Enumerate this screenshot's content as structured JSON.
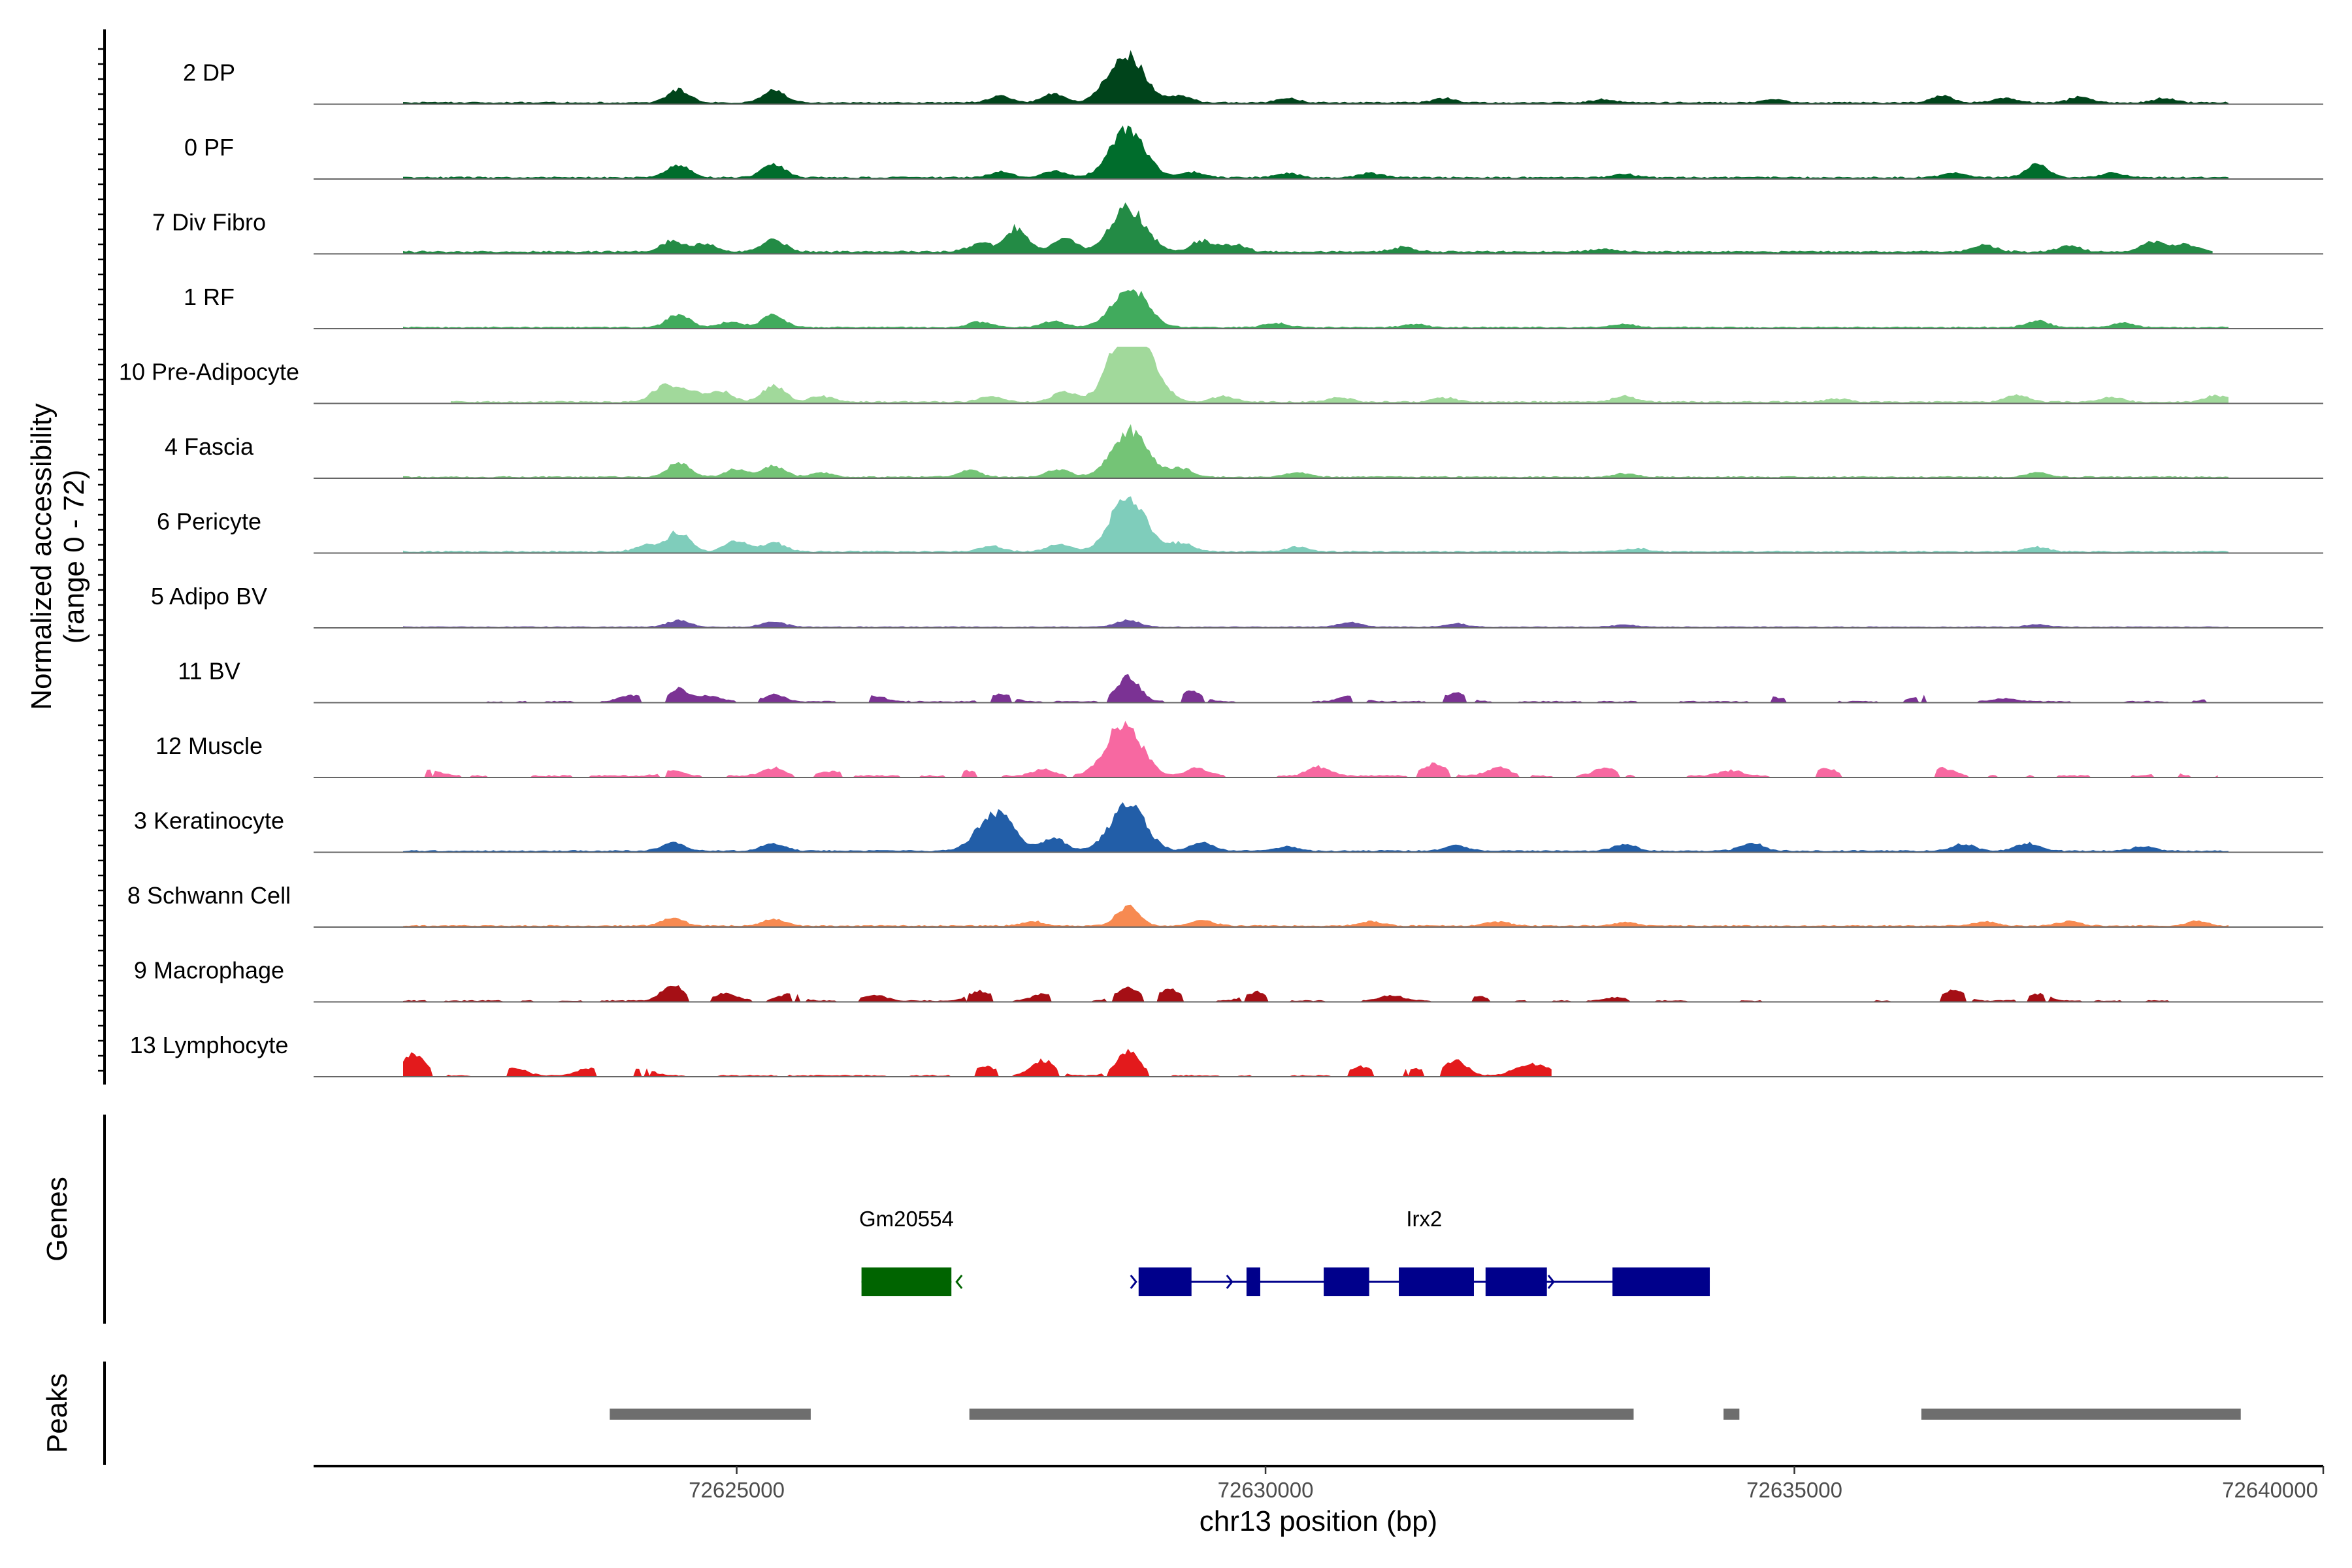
{
  "chart_data": {
    "type": "area",
    "ylabel_line1": "Normalized accessibility",
    "ylabel_line2": "(range 0 - 72)",
    "ylim": [
      0,
      72
    ],
    "xlabel": "chr13 position (bp)",
    "xlim": [
      72621000,
      72640000
    ],
    "x_ticks": [
      {
        "value": 72625000,
        "label": "72625000"
      },
      {
        "value": 72630000,
        "label": "72630000"
      },
      {
        "value": 72635000,
        "label": "72635000"
      },
      {
        "value": 72640000,
        "label": "72640000"
      }
    ],
    "track_range": [
      72621850,
      72640000
    ],
    "tracks": [
      {
        "name": "2 DP",
        "color": "#00441b",
        "peaks": [
          [
            72624450,
            12
          ],
          [
            72625350,
            11
          ],
          [
            72627500,
            6
          ],
          [
            72628000,
            8
          ],
          [
            72628680,
            46
          ],
          [
            72629200,
            6
          ],
          [
            72630200,
            4
          ],
          [
            72631700,
            4
          ],
          [
            72633200,
            3
          ],
          [
            72634800,
            3
          ],
          [
            72637000,
            4
          ],
          [
            72636400,
            6
          ],
          [
            72637700,
            5
          ],
          [
            72638500,
            4
          ]
        ],
        "noise": 1.5,
        "start": 72621850,
        "end": 72639100
      },
      {
        "name": "0 PF",
        "color": "#006d2c",
        "peaks": [
          [
            72624450,
            12
          ],
          [
            72625350,
            12
          ],
          [
            72627500,
            5
          ],
          [
            72628000,
            6
          ],
          [
            72628700,
            44
          ],
          [
            72629300,
            5
          ],
          [
            72630200,
            4
          ],
          [
            72631000,
            4
          ],
          [
            72633400,
            3
          ],
          [
            72636500,
            4
          ],
          [
            72637300,
            12
          ],
          [
            72638000,
            4
          ]
        ],
        "noise": 1.5,
        "start": 72621850,
        "end": 72639100
      },
      {
        "name": "7 Div Fibro",
        "color": "#238b45",
        "peaks": [
          [
            72624400,
            10
          ],
          [
            72624700,
            7
          ],
          [
            72625350,
            11
          ],
          [
            72627650,
            22
          ],
          [
            72627300,
            8
          ],
          [
            72628100,
            12
          ],
          [
            72628700,
            40
          ],
          [
            72629400,
            10
          ],
          [
            72629700,
            7
          ],
          [
            72631300,
            4
          ],
          [
            72633200,
            3
          ],
          [
            72636800,
            6
          ],
          [
            72637600,
            6
          ],
          [
            72638400,
            9
          ],
          [
            72638700,
            7
          ]
        ],
        "noise": 2.0,
        "start": 72621850,
        "end": 72638950
      },
      {
        "name": "1 RF",
        "color": "#41ab5d",
        "peaks": [
          [
            72624450,
            12
          ],
          [
            72625350,
            11
          ],
          [
            72624950,
            5
          ],
          [
            72627300,
            5
          ],
          [
            72628000,
            6
          ],
          [
            72628720,
            36
          ],
          [
            72630100,
            4
          ],
          [
            72631400,
            3
          ],
          [
            72633400,
            3
          ],
          [
            72637300,
            6
          ],
          [
            72638100,
            4
          ]
        ],
        "noise": 1.2,
        "start": 72621850,
        "end": 72639100
      },
      {
        "name": "10 Pre-Adipocyte",
        "color": "#a1d99b",
        "peaks": [
          [
            72624300,
            14
          ],
          [
            72624550,
            11
          ],
          [
            72624850,
            10
          ],
          [
            72625350,
            15
          ],
          [
            72625800,
            5
          ],
          [
            72627400,
            5
          ],
          [
            72628100,
            10
          ],
          [
            72628680,
            60
          ],
          [
            72628850,
            28
          ],
          [
            72629600,
            5
          ],
          [
            72630700,
            4
          ],
          [
            72631700,
            4
          ],
          [
            72633400,
            5
          ],
          [
            72635400,
            3
          ],
          [
            72637100,
            6
          ],
          [
            72638000,
            4
          ],
          [
            72639000,
            6
          ]
        ],
        "noise": 1.5,
        "start": 72622300,
        "end": 72639100
      },
      {
        "name": "4 Fascia",
        "color": "#74c476",
        "peaks": [
          [
            72624450,
            13
          ],
          [
            72625000,
            7
          ],
          [
            72625350,
            10
          ],
          [
            72625800,
            4
          ],
          [
            72627200,
            6
          ],
          [
            72628050,
            7
          ],
          [
            72628720,
            42
          ],
          [
            72629200,
            8
          ],
          [
            72630300,
            4
          ],
          [
            72633400,
            3
          ],
          [
            72637300,
            4
          ]
        ],
        "noise": 1.2,
        "start": 72621850,
        "end": 72639100
      },
      {
        "name": "6 Pericyte",
        "color": "#7fcdbb",
        "peaks": [
          [
            72624450,
            18
          ],
          [
            72624150,
            6
          ],
          [
            72625000,
            10
          ],
          [
            72625350,
            8
          ],
          [
            72627400,
            5
          ],
          [
            72628050,
            7
          ],
          [
            72628700,
            50
          ],
          [
            72629200,
            8
          ],
          [
            72630300,
            4
          ],
          [
            72633500,
            3
          ],
          [
            72637300,
            4
          ]
        ],
        "noise": 1.4,
        "start": 72621850,
        "end": 72639100
      },
      {
        "name": "5 Adipo BV",
        "color": "#6a51a3",
        "peaks": [
          [
            72624450,
            6
          ],
          [
            72625350,
            5
          ],
          [
            72628700,
            6
          ],
          [
            72630800,
            4
          ],
          [
            72631800,
            3
          ],
          [
            72633400,
            2
          ],
          [
            72637300,
            2
          ]
        ],
        "noise": 0.8,
        "start": 72621850,
        "end": 72639100
      },
      {
        "name": "11 BV",
        "color": "#7b3294",
        "peaks": [
          [
            72624450,
            11
          ],
          [
            72624000,
            6
          ],
          [
            72624750,
            5
          ],
          [
            72625350,
            6
          ],
          [
            72626300,
            5
          ],
          [
            72627500,
            7
          ],
          [
            72628700,
            22
          ],
          [
            72629300,
            9
          ],
          [
            72630800,
            5
          ],
          [
            72631800,
            8
          ],
          [
            72634800,
            4
          ],
          [
            72636200,
            5
          ],
          [
            72637000,
            3
          ],
          [
            72639000,
            4
          ]
        ],
        "noise": 1.0,
        "start": 72622300,
        "end": 72639100,
        "gaps": 0.45
      },
      {
        "name": "12 Muscle",
        "color": "#f768a1",
        "peaks": [
          [
            72622100,
            5
          ],
          [
            72624400,
            5
          ],
          [
            72625350,
            7
          ],
          [
            72625900,
            4
          ],
          [
            72627200,
            5
          ],
          [
            72627900,
            6
          ],
          [
            72628660,
            48
          ],
          [
            72629350,
            7
          ],
          [
            72630500,
            8
          ],
          [
            72631600,
            11
          ],
          [
            72632200,
            8
          ],
          [
            72633200,
            7
          ],
          [
            72634400,
            5
          ],
          [
            72635300,
            6
          ],
          [
            72636400,
            7
          ],
          [
            72638500,
            4
          ]
        ],
        "noise": 1.5,
        "start": 72621850,
        "end": 72639000,
        "gaps": 0.4
      },
      {
        "name": "3 Keratinocyte",
        "color": "#225ea8",
        "peaks": [
          [
            72624400,
            8
          ],
          [
            72625350,
            7
          ],
          [
            72627450,
            36
          ],
          [
            72628000,
            12
          ],
          [
            72628700,
            42
          ],
          [
            72629400,
            8
          ],
          [
            72630200,
            4
          ],
          [
            72631800,
            5
          ],
          [
            72633400,
            6
          ],
          [
            72634600,
            7
          ],
          [
            72636600,
            6
          ],
          [
            72637200,
            7
          ],
          [
            72638300,
            4
          ]
        ],
        "noise": 1.3,
        "start": 72621850,
        "end": 72639100
      },
      {
        "name": "8 Schwann Cell",
        "color": "#f78a51",
        "peaks": [
          [
            72624400,
            7
          ],
          [
            72625350,
            6
          ],
          [
            72627800,
            4
          ],
          [
            72628700,
            18
          ],
          [
            72629400,
            5
          ],
          [
            72631000,
            4
          ],
          [
            72632200,
            4
          ],
          [
            72633400,
            3
          ],
          [
            72636800,
            4
          ],
          [
            72637600,
            4
          ],
          [
            72638800,
            4
          ]
        ],
        "noise": 1.2,
        "start": 72621850,
        "end": 72639100
      },
      {
        "name": "9 Macrophage",
        "color": "#a50f15",
        "peaks": [
          [
            72624400,
            14
          ],
          [
            72624900,
            7
          ],
          [
            72625500,
            6
          ],
          [
            72626300,
            5
          ],
          [
            72627300,
            9
          ],
          [
            72627900,
            6
          ],
          [
            72628700,
            12
          ],
          [
            72629100,
            10
          ],
          [
            72629900,
            8
          ],
          [
            72631200,
            5
          ],
          [
            72632000,
            4
          ],
          [
            72633300,
            3
          ],
          [
            72636500,
            10
          ],
          [
            72637300,
            6
          ],
          [
            72638800,
            4
          ]
        ],
        "noise": 1.0,
        "start": 72621850,
        "end": 72639100,
        "gaps": 0.5
      },
      {
        "name": "13 Lymphocyte",
        "color": "#e31a1c",
        "peaks": [
          [
            72621950,
            20
          ],
          [
            72622900,
            7
          ],
          [
            72623600,
            7
          ],
          [
            72624100,
            6
          ],
          [
            72627350,
            9
          ],
          [
            72627900,
            14
          ],
          [
            72628700,
            22
          ],
          [
            72630900,
            8
          ],
          [
            72631400,
            6
          ],
          [
            72631800,
            14
          ],
          [
            72632400,
            6
          ],
          [
            72632600,
            9
          ]
        ],
        "noise": 1.0,
        "start": 72621850,
        "end": 72632700,
        "gaps": 0.55
      }
    ],
    "genes": [
      {
        "name": "Gm20554",
        "color": "#006400",
        "strand": "-",
        "start": 72626180,
        "end": 72627030,
        "exons": [
          [
            72626180,
            72627030
          ]
        ]
      },
      {
        "name": "Irx2",
        "color": "#00008b",
        "strand": "+",
        "start": 72628800,
        "end": 72634200,
        "exons": [
          [
            72628800,
            72629300
          ],
          [
            72629820,
            72629950
          ],
          [
            72630550,
            72630980
          ],
          [
            72631260,
            72631970
          ],
          [
            72632080,
            72632660
          ],
          [
            72633280,
            72634200
          ]
        ]
      }
    ],
    "peaks": [
      [
        72623800,
        72625700
      ],
      [
        72627200,
        72633480
      ],
      [
        72634330,
        72634480
      ],
      [
        72636200,
        72639220
      ]
    ],
    "panel_labels": {
      "genes": "Genes",
      "peaks": "Peaks"
    }
  }
}
